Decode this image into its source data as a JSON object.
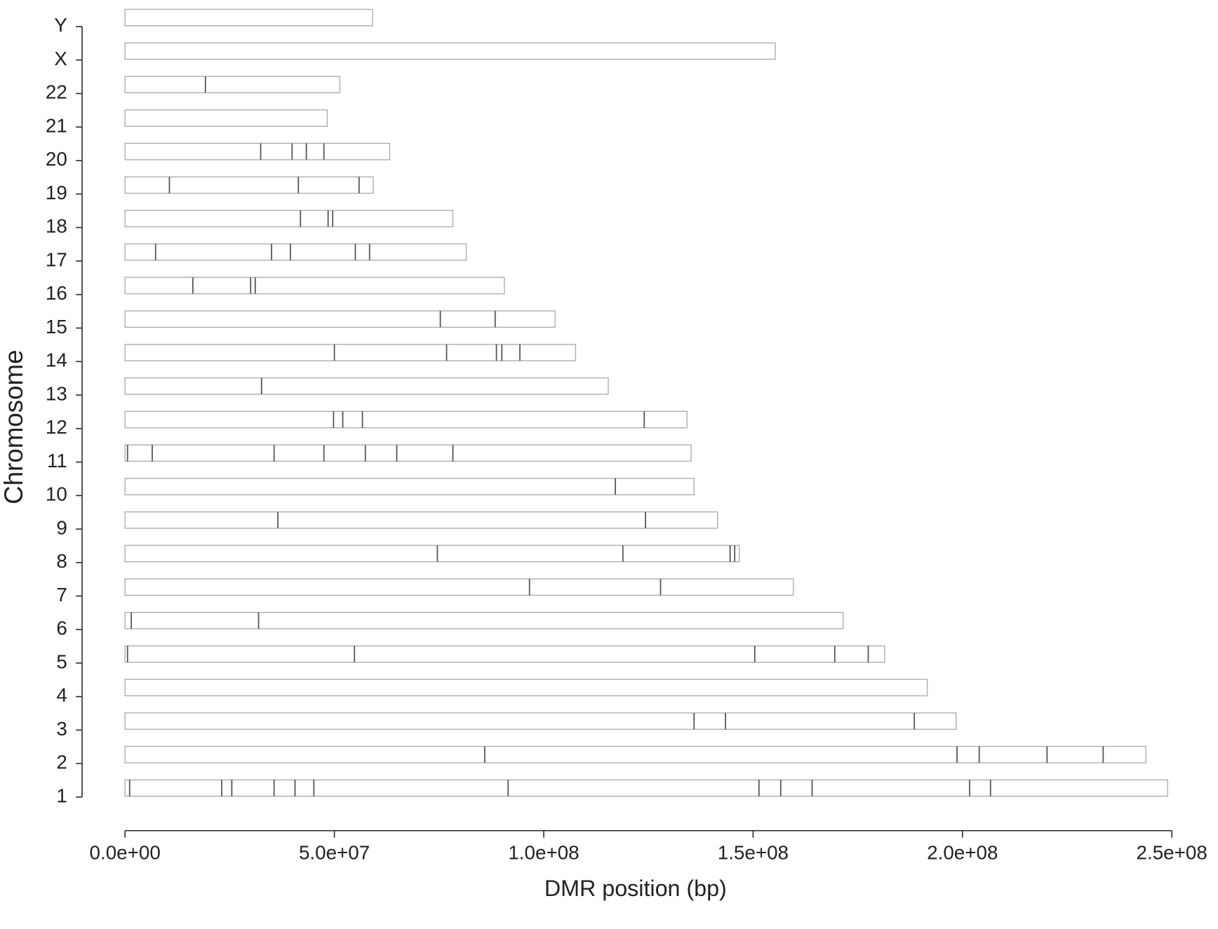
{
  "chart_data": {
    "type": "bar",
    "orientation": "horizontal",
    "xlabel": "DMR position (bp)",
    "ylabel": "Chromosome",
    "categories": [
      "1",
      "2",
      "3",
      "4",
      "5",
      "6",
      "7",
      "8",
      "9",
      "10",
      "11",
      "12",
      "13",
      "14",
      "15",
      "16",
      "17",
      "18",
      "19",
      "20",
      "21",
      "22",
      "X",
      "Y"
    ],
    "values": [
      249000000,
      243800000,
      198500000,
      191600000,
      181400000,
      171500000,
      159600000,
      146700000,
      141500000,
      135900000,
      135200000,
      134200000,
      115400000,
      107600000,
      102700000,
      90600000,
      81500000,
      78300000,
      59300000,
      63200000,
      48300000,
      51300000,
      155300000,
      59100000
    ],
    "dmr_positions": [
      [
        1100000,
        23100000,
        25500000,
        35600000,
        40600000,
        45100000,
        91500000,
        151400000,
        156600000,
        164100000,
        201700000,
        206700000
      ],
      [
        85900000,
        198700000,
        204000000,
        220200000,
        233600000
      ],
      [
        135900000,
        143400000,
        188500000
      ],
      [],
      [
        600000,
        54800000,
        150400000,
        169500000,
        177500000
      ],
      [
        1500000,
        31900000
      ],
      [
        96600000,
        127900000
      ],
      [
        74600000,
        118900000,
        144500000,
        145600000
      ],
      [
        36500000,
        124300000
      ],
      [
        117100000
      ],
      [
        600000,
        6500000,
        35600000,
        47500000,
        57400000,
        64900000,
        78300000
      ],
      [
        49800000,
        52000000,
        56700000,
        124000000
      ],
      [
        32600000
      ],
      [
        50000000,
        76800000,
        88700000,
        90000000,
        94300000
      ],
      [
        75300000,
        88400000
      ],
      [
        16200000,
        30000000,
        31100000
      ],
      [
        7300000,
        35000000,
        39500000,
        55000000,
        58400000
      ],
      [
        41900000,
        48500000,
        49600000
      ],
      [
        10600000,
        41400000,
        55900000
      ],
      [
        32400000,
        39900000,
        43300000,
        47500000
      ],
      [],
      [
        19200000
      ],
      [],
      []
    ],
    "bar_color": "#ffffff",
    "bar_edge_color": "#b0b0b0",
    "marker_color": "#555555",
    "xlim": [
      0,
      250000000
    ],
    "xticks": [
      {
        "value": 0,
        "label": "0.0e+00"
      },
      {
        "value": 50000000,
        "label": "5.0e+07"
      },
      {
        "value": 100000000,
        "label": "1.0e+08"
      },
      {
        "value": 150000000,
        "label": "1.5e+08"
      },
      {
        "value": 200000000,
        "label": "2.0e+08"
      },
      {
        "value": 250000000,
        "label": "2.5e+08"
      }
    ]
  }
}
